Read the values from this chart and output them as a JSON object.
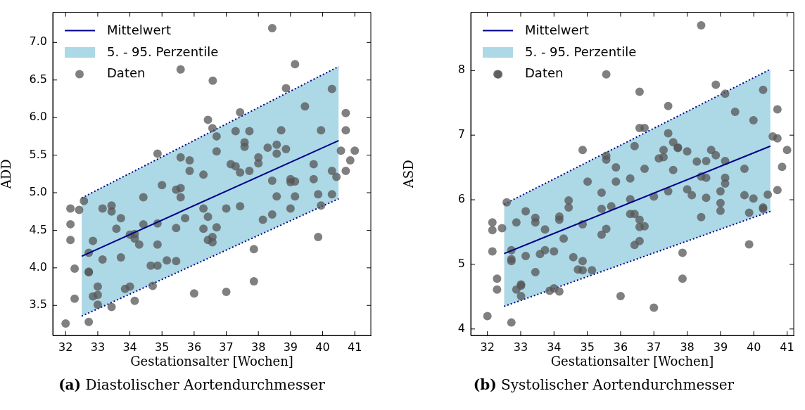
{
  "chart_data": [
    {
      "type": "scatter",
      "xlabel": "Gestationsalter [Wochen]",
      "ylabel": "ADD",
      "xlim": [
        31.6,
        41.5
      ],
      "ylim": [
        3.1,
        7.4
      ],
      "xticks": [
        32,
        33,
        34,
        35,
        36,
        37,
        38,
        39,
        40,
        41
      ],
      "yticks": [
        3.5,
        {
          "value": 4,
          "label": "4.0"
        },
        4.5,
        {
          "value": 5,
          "label": "5.0"
        },
        5.5,
        {
          "value": 6,
          "label": "6.0"
        },
        6.5,
        {
          "value": 7,
          "label": "7.0"
        }
      ],
      "grid": false,
      "legend": "top left",
      "annotations": [
        "(a) Diastolischer Aortendurchmesser"
      ],
      "series": [
        {
          "name": "Mittelwert",
          "type": "line",
          "color": "#00008b",
          "line_style": "solid",
          "marker": "none",
          "x": [
            32.5,
            40.5
          ],
          "values": [
            4.155,
            5.694
          ]
        },
        {
          "type": "line",
          "color": "#00008b",
          "line_style": "dotted",
          "marker": "none",
          "x": [
            32.5,
            40.5
          ],
          "values": [
            3.357,
            4.92
          ]
        },
        {
          "name": "5. - 95. Perzentile",
          "type": "area",
          "color": "#add8e6",
          "line_style": "dotted",
          "marker": "none",
          "x": [
            32.5,
            40.5
          ],
          "values": [
            4.93,
            6.68
          ]
        },
        {
          "name": "Daten",
          "type": "scatter",
          "color": "#555555",
          "marker": "circle",
          "x": [
            35.58,
            36.58,
            36.43,
            36.57,
            36.7,
            36.7,
            34.86,
            35.58,
            35.86,
            35.86,
            36.29,
            35.0,
            35.44,
            35.58,
            35.58,
            34.42,
            32.57,
            32.15,
            32.42,
            33.15,
            33.43,
            33.43,
            33.72,
            34.86,
            34.42,
            32.15,
            33.58,
            35.72,
            36.29,
            36.43,
            36.29,
            35.44,
            36.7,
            34.0,
            34.15,
            34.15,
            32.15,
            32.85,
            34.29,
            34.86,
            36.43,
            36.57,
            36.57,
            32.72,
            33.15,
            33.72,
            32.28,
            32.72,
            32.72,
            34.65,
            34.86,
            35.15,
            35.44,
            33.0,
            34.0,
            33.85,
            34.71,
            36.0,
            32.85,
            33.0,
            32.28,
            34.15,
            33.0,
            33.43,
            32.0,
            32.72,
            38.43,
            39.14,
            38.86,
            40.29,
            39.45,
            37.43,
            40.72,
            37.29,
            37.72,
            38.71,
            39.95,
            40.72,
            37.57,
            37.57,
            38.29,
            38.57,
            38.57,
            38.86,
            40.57,
            41.0,
            38.0,
            38.0,
            37.14,
            37.29,
            37.43,
            37.72,
            39.72,
            40.86,
            40.29,
            40.72,
            40.43,
            38.43,
            39.0,
            39.0,
            39.14,
            39.72,
            38.57,
            39.14,
            39.86,
            40.29,
            37.0,
            37.43,
            39.0,
            39.95,
            38.14,
            38.43,
            39.86,
            37.86,
            37.86,
            37.0
          ],
          "values": [
            6.64,
            6.49,
            5.97,
            5.86,
            5.75,
            5.55,
            5.52,
            5.47,
            5.43,
            5.29,
            5.24,
            5.1,
            5.04,
            5.06,
            4.94,
            4.94,
            4.89,
            4.79,
            4.77,
            4.79,
            4.83,
            4.75,
            4.66,
            4.59,
            4.58,
            4.58,
            4.52,
            4.66,
            4.79,
            4.68,
            4.52,
            4.53,
            4.54,
            4.44,
            4.45,
            4.39,
            4.37,
            4.36,
            4.31,
            4.31,
            4.37,
            4.41,
            4.34,
            4.2,
            4.11,
            4.14,
            3.99,
            3.95,
            3.94,
            4.03,
            4.03,
            4.1,
            4.09,
            3.75,
            3.75,
            3.72,
            3.76,
            3.66,
            3.62,
            3.64,
            3.59,
            3.56,
            3.51,
            3.48,
            3.26,
            3.28,
            7.19,
            6.71,
            6.39,
            6.38,
            6.15,
            6.07,
            6.06,
            5.82,
            5.82,
            5.83,
            5.83,
            5.83,
            5.67,
            5.61,
            5.6,
            5.64,
            5.52,
            5.58,
            5.56,
            5.56,
            5.47,
            5.39,
            5.38,
            5.35,
            5.27,
            5.29,
            5.38,
            5.43,
            5.29,
            5.29,
            5.21,
            5.16,
            5.18,
            5.14,
            5.15,
            5.18,
            4.95,
            4.95,
            4.98,
            4.98,
            4.79,
            4.82,
            4.79,
            4.83,
            4.64,
            4.71,
            4.41,
            4.25,
            3.82,
            3.68
          ]
        }
      ]
    },
    {
      "type": "scatter",
      "xlabel": "Gestationsalter [Wochen]",
      "ylabel": "ASD",
      "xlim": [
        31.5,
        41.2
      ],
      "ylim": [
        3.9,
        8.9
      ],
      "xticks": [
        32,
        33,
        34,
        35,
        36,
        37,
        38,
        39,
        40,
        41
      ],
      "yticks": [
        4,
        5,
        6,
        7,
        8
      ],
      "grid": false,
      "legend": "top left",
      "annotations": [
        "(b) Systolischer Aortendurchmesser"
      ],
      "series": [
        {
          "name": "Mittelwert",
          "type": "line",
          "color": "#00008b",
          "line_style": "solid",
          "marker": "none",
          "x": [
            32.5,
            40.5
          ],
          "values": [
            5.167,
            6.83
          ]
        },
        {
          "type": "line",
          "color": "#00008b",
          "line_style": "dotted",
          "marker": "none",
          "x": [
            32.5,
            40.5
          ],
          "values": [
            4.35,
            5.82
          ]
        },
        {
          "name": "5. - 95. Perzentile",
          "type": "area",
          "color": "#add8e6",
          "line_style": "dotted",
          "marker": "none",
          "x": [
            32.5,
            40.5
          ],
          "values": [
            5.93,
            8.02
          ]
        },
        {
          "name": "Daten",
          "type": "scatter",
          "color": "#555555",
          "marker": "circle",
          "x": [
            32.33,
            35.57,
            34.86,
            35.57,
            35.57,
            35.86,
            35.86,
            35.01,
            35.43,
            32.58,
            34.44,
            34.44,
            35.72,
            35.43,
            33.15,
            32.15,
            32.15,
            32.44,
            32.87,
            33.44,
            33.44,
            34.16,
            34.16,
            33.73,
            34.86,
            35.57,
            35.43,
            34.29,
            32.15,
            32.72,
            32.72,
            32.72,
            33.15,
            33.58,
            33.73,
            34.0,
            34.58,
            34.86,
            34.72,
            34.86,
            35.14,
            33.44,
            32.29,
            32.29,
            32.87,
            33.01,
            33.01,
            33.01,
            33.87,
            34.0,
            34.16,
            36.0,
            32.0,
            32.72,
            38.42,
            36.57,
            38.86,
            39.14,
            40.28,
            37.43,
            39.44,
            40.71,
            39.99,
            36.57,
            36.72,
            37.43,
            36.42,
            37.58,
            37.72,
            37.72,
            37.29,
            38.0,
            38.72,
            38.86,
            40.57,
            40.71,
            41.0,
            37.15,
            37.29,
            38.29,
            38.57,
            39.14,
            36.72,
            37.58,
            39.72,
            40.85,
            36.29,
            38.42,
            38.57,
            39.14,
            39.14,
            37.43,
            38.0,
            39.0,
            38.14,
            37.0,
            36.29,
            38.57,
            39.72,
            39.99,
            40.42,
            40.71,
            36.29,
            36.42,
            36.57,
            36.72,
            36.57,
            39.0,
            39.0,
            38.42,
            39.86,
            40.28,
            40.28,
            36.57,
            36.42,
            39.86,
            37.86,
            37.86,
            37.0
          ],
          "values": [
            7.94,
            7.94,
            6.77,
            6.68,
            6.62,
            6.5,
            6.28,
            6.28,
            6.11,
            5.96,
            5.99,
            5.88,
            5.9,
            5.86,
            5.82,
            5.65,
            5.53,
            5.56,
            5.65,
            5.72,
            5.65,
            5.74,
            5.69,
            5.54,
            5.62,
            5.55,
            5.46,
            5.4,
            5.2,
            5.22,
            5.08,
            5.05,
            5.13,
            5.16,
            5.22,
            5.2,
            5.11,
            5.05,
            4.92,
            4.91,
            4.91,
            4.88,
            4.78,
            4.61,
            4.61,
            4.69,
            4.67,
            4.51,
            4.59,
            4.63,
            4.58,
            4.51,
            4.2,
            4.1,
            8.7,
            7.67,
            7.78,
            7.64,
            7.7,
            7.45,
            7.36,
            7.4,
            7.23,
            7.11,
            7.11,
            7.03,
            6.83,
            6.89,
            6.8,
            6.81,
            6.77,
            6.75,
            6.77,
            6.69,
            6.98,
            6.95,
            6.77,
            6.64,
            6.66,
            6.59,
            6.6,
            6.6,
            6.48,
            6.46,
            6.48,
            6.51,
            6.33,
            6.36,
            6.34,
            6.34,
            6.25,
            6.13,
            6.16,
            6.13,
            6.07,
            6.05,
            6.01,
            6.03,
            6.07,
            6.02,
            6.08,
            6.15,
            5.78,
            5.78,
            5.69,
            5.59,
            5.58,
            5.95,
            5.83,
            5.73,
            5.8,
            5.88,
            5.86,
            5.36,
            5.3,
            5.31,
            5.18,
            4.78,
            4.33
          ]
        }
      ]
    }
  ]
}
